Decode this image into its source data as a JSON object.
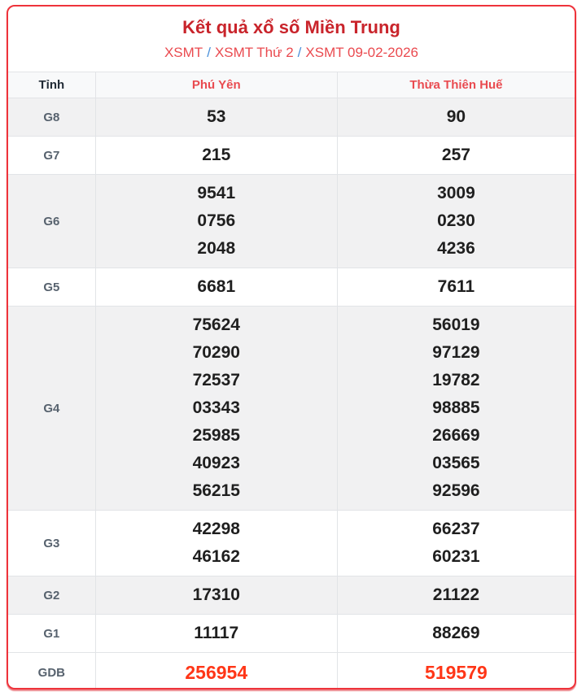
{
  "header": {
    "title": "Kết quả xổ số Miền Trung",
    "breadcrumb": {
      "separator": "/",
      "items": [
        "XSMT",
        "XSMT Thứ 2",
        "XSMT 09-02-2026"
      ]
    }
  },
  "table": {
    "province_header": "Tỉnh",
    "columns": [
      "Phú Yên",
      "Thừa Thiên Huế"
    ],
    "rows": [
      {
        "label": "G8",
        "shaded": true,
        "highlight": false,
        "cells": [
          [
            "53"
          ],
          [
            "90"
          ]
        ]
      },
      {
        "label": "G7",
        "shaded": false,
        "highlight": false,
        "cells": [
          [
            "215"
          ],
          [
            "257"
          ]
        ]
      },
      {
        "label": "G6",
        "shaded": true,
        "highlight": false,
        "cells": [
          [
            "9541",
            "0756",
            "2048"
          ],
          [
            "3009",
            "0230",
            "4236"
          ]
        ]
      },
      {
        "label": "G5",
        "shaded": false,
        "highlight": false,
        "cells": [
          [
            "6681"
          ],
          [
            "7611"
          ]
        ]
      },
      {
        "label": "G4",
        "shaded": true,
        "highlight": false,
        "cells": [
          [
            "75624",
            "70290",
            "72537",
            "03343",
            "25985",
            "40923",
            "56215"
          ],
          [
            "56019",
            "97129",
            "19782",
            "98885",
            "26669",
            "03565",
            "92596"
          ]
        ]
      },
      {
        "label": "G3",
        "shaded": false,
        "highlight": false,
        "cells": [
          [
            "42298",
            "46162"
          ],
          [
            "66237",
            "60231"
          ]
        ]
      },
      {
        "label": "G2",
        "shaded": true,
        "highlight": false,
        "cells": [
          [
            "17310"
          ],
          [
            "21122"
          ]
        ]
      },
      {
        "label": "G1",
        "shaded": false,
        "highlight": false,
        "cells": [
          [
            "11117"
          ],
          [
            "88269"
          ]
        ]
      },
      {
        "label": "GDB",
        "shaded": false,
        "highlight": true,
        "cells": [
          [
            "256954"
          ],
          [
            "519579"
          ]
        ]
      }
    ]
  },
  "colors": {
    "card_border_red": "#ee333b",
    "title_red": "#c9242b",
    "link_red": "#ea4a4f",
    "separator_blue": "#4a90d9",
    "highlight_red": "#ff3617",
    "shaded_row_bg": "#f1f1f2",
    "header_row_bg": "#f8f9fa"
  }
}
